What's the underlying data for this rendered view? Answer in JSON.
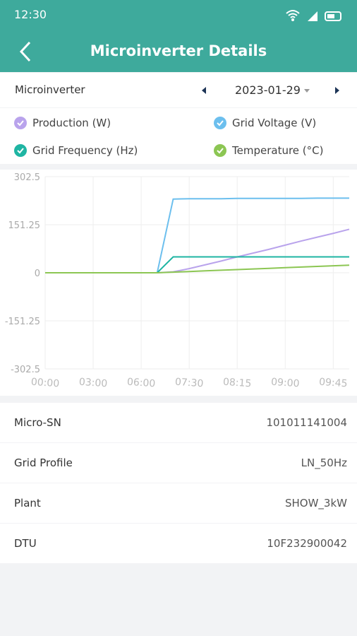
{
  "status_bar": {
    "time": "12:30"
  },
  "header": {
    "title": "Microinverter Details"
  },
  "selector": {
    "label": "Microinverter",
    "date": "2023-01-29"
  },
  "chart_data": {
    "type": "line",
    "categories": [
      "00:00",
      null,
      null,
      "03:00",
      null,
      null,
      "06:00",
      null,
      null,
      "07:30",
      null,
      null,
      "08:15",
      null,
      null,
      "09:00",
      null,
      null,
      "09:45",
      null
    ],
    "series": [
      {
        "name": "Production (W)",
        "color": "#b9a3ec",
        "values": [
          0,
          0,
          0,
          0,
          0,
          0,
          0,
          0,
          3,
          13,
          25,
          37,
          50,
          62,
          74,
          87,
          100,
          112,
          124,
          137
        ]
      },
      {
        "name": "Grid Voltage (V)",
        "color": "#6cbfee",
        "values": [
          0,
          0,
          0,
          0,
          0,
          0,
          0,
          0,
          232,
          233,
          233,
          233,
          234,
          234,
          234,
          234,
          234,
          235,
          235,
          235
        ]
      },
      {
        "name": "Grid Frequency (Hz)",
        "color": "#1fb5a3",
        "values": [
          0,
          0,
          0,
          0,
          0,
          0,
          0,
          0,
          50,
          50,
          50,
          50,
          50,
          50,
          50,
          50,
          50,
          50,
          50,
          50
        ]
      },
      {
        "name": "Temperature (°C)",
        "color": "#8cc653",
        "values": [
          0,
          0,
          0,
          0,
          0,
          0,
          0,
          0,
          2,
          4,
          6,
          8,
          10,
          12,
          14,
          16,
          18,
          20,
          22,
          24
        ]
      }
    ],
    "ylim": [
      -302.5,
      302.5
    ],
    "yticks": [
      302.5,
      151.25,
      0,
      -151.25,
      -302.5
    ],
    "grid": true
  },
  "details": [
    {
      "label": "Micro-SN",
      "value": "101011141004"
    },
    {
      "label": "Grid Profile",
      "value": "LN_50Hz"
    },
    {
      "label": "Plant",
      "value": "SHOW_3kW"
    },
    {
      "label": "DTU",
      "value": "10F232900042"
    }
  ]
}
